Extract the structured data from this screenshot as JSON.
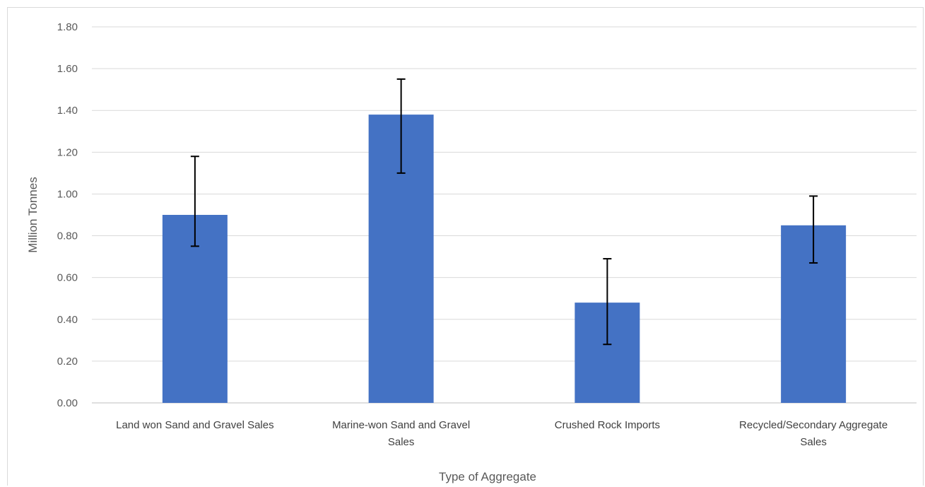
{
  "chart_data": {
    "type": "bar",
    "title": "",
    "xlabel": "Type of Aggregate",
    "ylabel": "Million Tonnes",
    "ylim": [
      0,
      1.8
    ],
    "yticks": [
      "0.00",
      "0.20",
      "0.40",
      "0.60",
      "0.80",
      "1.00",
      "1.20",
      "1.40",
      "1.60",
      "1.80"
    ],
    "ytick_values": [
      0,
      0.2,
      0.4,
      0.6,
      0.8,
      1.0,
      1.2,
      1.4,
      1.6,
      1.8
    ],
    "categories": [
      [
        "Land won Sand and Gravel Sales"
      ],
      [
        "Marine-won Sand and Gravel",
        "Sales"
      ],
      [
        "Crushed Rock Imports"
      ],
      [
        "Recycled/Secondary Aggregate",
        "Sales"
      ]
    ],
    "values": [
      0.9,
      1.38,
      0.48,
      0.85
    ],
    "error_low": [
      0.75,
      1.1,
      0.28,
      0.67
    ],
    "error_high": [
      1.18,
      1.55,
      0.69,
      0.99
    ],
    "bar_color": "#4472c4",
    "grid": true,
    "legend": "none"
  }
}
